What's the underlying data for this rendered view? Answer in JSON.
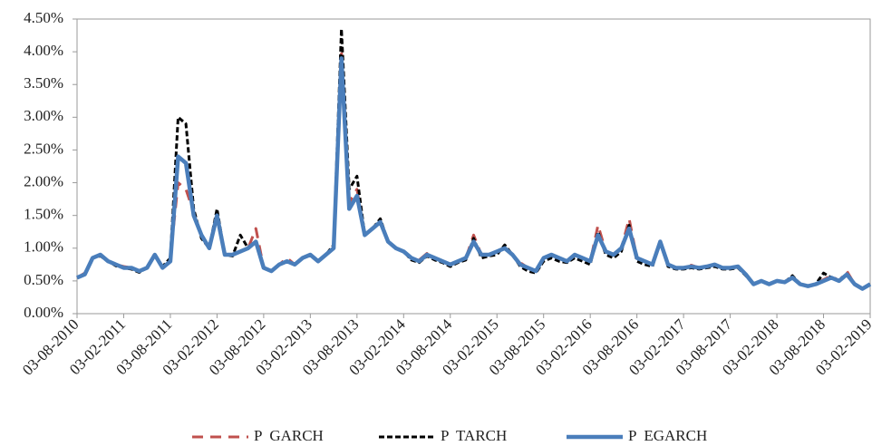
{
  "chart_data": {
    "type": "line",
    "categories": [
      "03-08-2010",
      null,
      null,
      null,
      null,
      null,
      "03-02-2011",
      null,
      null,
      null,
      null,
      null,
      "03-08-2011",
      null,
      null,
      null,
      null,
      null,
      "03-02-2012",
      null,
      null,
      null,
      null,
      null,
      "03-08-2012",
      null,
      null,
      null,
      null,
      null,
      "03-02-2013",
      null,
      null,
      null,
      null,
      null,
      "03-08-2013",
      null,
      null,
      null,
      null,
      null,
      "03-02-2014",
      null,
      null,
      null,
      null,
      null,
      "03-08-2014",
      null,
      null,
      null,
      null,
      null,
      "03-02-2015",
      null,
      null,
      null,
      null,
      null,
      "03-08-2015",
      null,
      null,
      null,
      null,
      null,
      "03-02-2016",
      null,
      null,
      null,
      null,
      null,
      "03-08-2016",
      null,
      null,
      null,
      null,
      null,
      "03-02-2017",
      null,
      null,
      null,
      null,
      null,
      "03-08-2017",
      null,
      null,
      null,
      null,
      null,
      "03-02-2018",
      null,
      null,
      null,
      null,
      null,
      "03-08-2018",
      null,
      null,
      null,
      null,
      null,
      "03-02-2019"
    ],
    "series": [
      {
        "name": "P  GARCH",
        "color": "#c0504d",
        "dash": "12,8",
        "width": 3,
        "values": [
          0.55,
          0.62,
          0.85,
          0.9,
          0.8,
          0.75,
          0.72,
          0.7,
          0.65,
          0.7,
          0.92,
          0.7,
          0.85,
          2.0,
          1.9,
          1.55,
          1.2,
          1.0,
          1.5,
          0.9,
          0.9,
          0.95,
          1.0,
          1.3,
          0.7,
          0.65,
          0.75,
          0.85,
          0.75,
          0.85,
          0.9,
          0.8,
          0.9,
          1.0,
          4.0,
          1.7,
          1.9,
          1.2,
          1.3,
          1.4,
          1.1,
          1.0,
          0.95,
          0.85,
          0.82,
          0.92,
          0.85,
          0.8,
          0.75,
          0.8,
          0.85,
          1.2,
          0.9,
          0.9,
          0.95,
          1.0,
          0.9,
          0.78,
          0.7,
          0.65,
          0.85,
          0.9,
          0.85,
          0.8,
          0.9,
          0.85,
          0.8,
          1.35,
          0.95,
          0.9,
          1.0,
          1.45,
          0.85,
          0.8,
          0.75,
          1.1,
          0.75,
          0.7,
          0.7,
          0.74,
          0.7,
          0.72,
          0.75,
          0.7,
          0.7,
          0.72,
          0.6,
          0.45,
          0.5,
          0.45,
          0.5,
          0.48,
          0.55,
          0.45,
          0.42,
          0.45,
          0.52,
          0.58,
          0.5,
          0.65,
          0.45,
          0.38,
          0.45
        ]
      },
      {
        "name": "P  TARCH",
        "color": "#000000",
        "dash": "6,3",
        "width": 3,
        "values": [
          0.55,
          0.6,
          0.85,
          0.88,
          0.8,
          0.73,
          0.7,
          0.68,
          0.63,
          0.7,
          0.9,
          0.72,
          0.85,
          3.0,
          2.9,
          1.6,
          1.15,
          1.0,
          1.6,
          0.9,
          0.88,
          1.2,
          1.0,
          1.1,
          0.7,
          0.65,
          0.75,
          0.8,
          0.75,
          0.85,
          0.9,
          0.8,
          0.9,
          1.05,
          4.35,
          1.9,
          2.1,
          1.2,
          1.3,
          1.45,
          1.1,
          1.0,
          0.95,
          0.82,
          0.78,
          0.88,
          0.82,
          0.78,
          0.72,
          0.78,
          0.82,
          1.15,
          0.85,
          0.88,
          0.9,
          1.05,
          0.9,
          0.72,
          0.65,
          0.62,
          0.8,
          0.85,
          0.8,
          0.78,
          0.85,
          0.8,
          0.75,
          1.25,
          0.9,
          0.85,
          0.95,
          1.35,
          0.8,
          0.75,
          0.72,
          1.1,
          0.72,
          0.68,
          0.68,
          0.7,
          0.68,
          0.7,
          0.72,
          0.68,
          0.68,
          0.7,
          0.58,
          0.45,
          0.5,
          0.45,
          0.5,
          0.48,
          0.58,
          0.45,
          0.42,
          0.45,
          0.62,
          0.55,
          0.5,
          0.6,
          0.45,
          0.38,
          0.45
        ]
      },
      {
        "name": "P  EGARCH",
        "color": "#4a7ebb",
        "dash": "",
        "width": 4.5,
        "values": [
          0.55,
          0.6,
          0.85,
          0.9,
          0.8,
          0.75,
          0.7,
          0.7,
          0.65,
          0.7,
          0.9,
          0.7,
          0.8,
          2.4,
          2.3,
          1.5,
          1.2,
          1.0,
          1.5,
          0.9,
          0.9,
          0.95,
          1.0,
          1.1,
          0.7,
          0.65,
          0.75,
          0.8,
          0.75,
          0.85,
          0.9,
          0.8,
          0.9,
          1.0,
          3.9,
          1.6,
          1.8,
          1.2,
          1.3,
          1.4,
          1.1,
          1.0,
          0.95,
          0.85,
          0.8,
          0.9,
          0.85,
          0.8,
          0.75,
          0.8,
          0.85,
          1.1,
          0.9,
          0.9,
          0.95,
          1.0,
          0.9,
          0.75,
          0.7,
          0.65,
          0.85,
          0.9,
          0.85,
          0.8,
          0.9,
          0.85,
          0.8,
          1.2,
          0.95,
          0.9,
          1.0,
          1.3,
          0.85,
          0.8,
          0.75,
          1.1,
          0.75,
          0.7,
          0.7,
          0.72,
          0.7,
          0.72,
          0.75,
          0.7,
          0.7,
          0.72,
          0.6,
          0.45,
          0.5,
          0.45,
          0.5,
          0.48,
          0.55,
          0.45,
          0.42,
          0.45,
          0.5,
          0.55,
          0.5,
          0.6,
          0.45,
          0.38,
          0.45
        ]
      }
    ],
    "ylim": [
      0,
      4.5
    ],
    "yticks": [
      {
        "value": 0,
        "label": "0.00%"
      },
      {
        "value": 0.5,
        "label": "0.50%"
      },
      {
        "value": 1,
        "label": "1.00%"
      },
      {
        "value": 1.5,
        "label": "1.50%"
      },
      {
        "value": 2,
        "label": "2.00%"
      },
      {
        "value": 2.5,
        "label": "2.50%"
      },
      {
        "value": 3,
        "label": "3.00%"
      },
      {
        "value": 3.5,
        "label": "3.50%"
      },
      {
        "value": 4,
        "label": "4.00%"
      },
      {
        "value": 4.5,
        "label": "4.50%"
      }
    ],
    "legend": "bottom"
  }
}
